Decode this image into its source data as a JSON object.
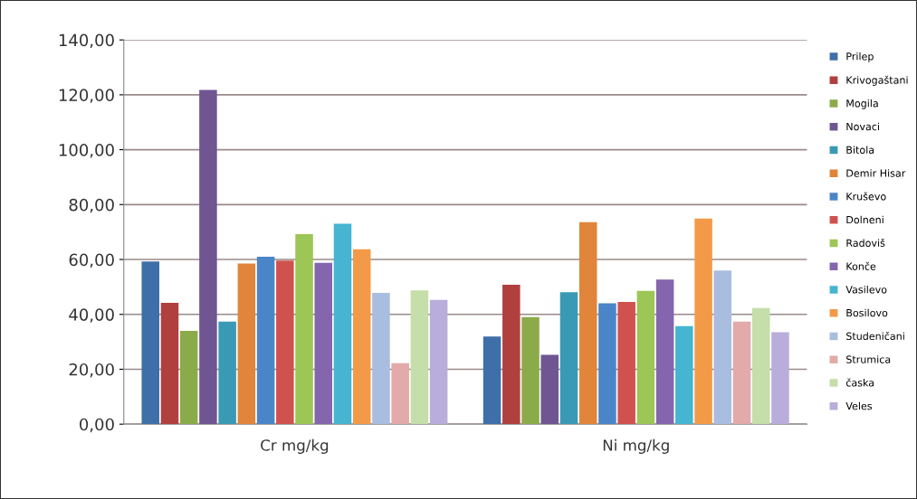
{
  "chart_data": {
    "type": "bar",
    "categories": [
      "Cr mg/kg",
      "Ni mg/kg"
    ],
    "ylim": [
      0,
      140
    ],
    "yticks": [
      {
        "value": 0,
        "label": "0,00"
      },
      {
        "value": 20,
        "label": "20,00"
      },
      {
        "value": 40,
        "label": "40,00"
      },
      {
        "value": 60,
        "label": "60,00"
      },
      {
        "value": 80,
        "label": "80,00"
      },
      {
        "value": 100,
        "label": "100,00"
      },
      {
        "value": 120,
        "label": "120,00"
      },
      {
        "value": 140,
        "label": "140,00"
      }
    ],
    "grid": "y",
    "legend": "right",
    "series": [
      {
        "name": "Prilep",
        "color": "#3f6fa8",
        "values": [
          59.3,
          31.9
        ]
      },
      {
        "name": "Krivogaštani",
        "color": "#b0403d",
        "values": [
          44.2,
          50.8
        ]
      },
      {
        "name": "Mogila",
        "color": "#8bab4a",
        "values": [
          34,
          39
        ]
      },
      {
        "name": "Novaci",
        "color": "#6f5592",
        "values": [
          121.8,
          25.3
        ]
      },
      {
        "name": "Bitola",
        "color": "#3a9ab5",
        "values": [
          37.4,
          48.1
        ]
      },
      {
        "name": "Demir Hisar",
        "color": "#e0853a",
        "values": [
          58.5,
          73.6
        ]
      },
      {
        "name": "Kruševo",
        "color": "#4a85c8",
        "values": [
          61,
          44
        ]
      },
      {
        "name": "Dolneni",
        "color": "#d0524e",
        "values": [
          59.6,
          44.5
        ]
      },
      {
        "name": "Radoviš",
        "color": "#9cc656",
        "values": [
          69.2,
          48.6
        ]
      },
      {
        "name": "Konče",
        "color": "#8465ae",
        "values": [
          58.8,
          52.7
        ]
      },
      {
        "name": "Vasilevo",
        "color": "#45b5d2",
        "values": [
          73,
          35.7
        ]
      },
      {
        "name": "Bosilovo",
        "color": "#f39a48",
        "values": [
          63.7,
          74.9
        ]
      },
      {
        "name": "Studeničani",
        "color": "#a9bde0",
        "values": [
          47.8,
          56
        ]
      },
      {
        "name": "Strumica",
        "color": "#e2aaa9",
        "values": [
          22.2,
          37.4
        ]
      },
      {
        "name": "časka",
        "color": "#c5deaa",
        "values": [
          48.7,
          42.3
        ]
      },
      {
        "name": "Veles",
        "color": "#b9addb",
        "values": [
          45.3,
          33.5
        ]
      }
    ]
  }
}
